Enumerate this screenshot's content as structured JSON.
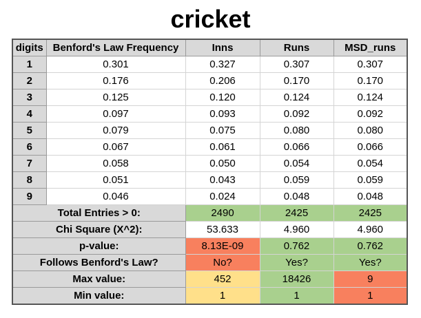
{
  "title": "cricket",
  "headers": [
    "digits",
    "Benford's Law Frequency",
    "Inns",
    "Runs",
    "MSD_runs"
  ],
  "rows": [
    {
      "digit": "1",
      "benford": "0.301",
      "inns": "0.327",
      "runs": "0.307",
      "msd": "0.307"
    },
    {
      "digit": "2",
      "benford": "0.176",
      "inns": "0.206",
      "runs": "0.170",
      "msd": "0.170"
    },
    {
      "digit": "3",
      "benford": "0.125",
      "inns": "0.120",
      "runs": "0.124",
      "msd": "0.124"
    },
    {
      "digit": "4",
      "benford": "0.097",
      "inns": "0.093",
      "runs": "0.092",
      "msd": "0.092"
    },
    {
      "digit": "5",
      "benford": "0.079",
      "inns": "0.075",
      "runs": "0.080",
      "msd": "0.080"
    },
    {
      "digit": "6",
      "benford": "0.067",
      "inns": "0.061",
      "runs": "0.066",
      "msd": "0.066"
    },
    {
      "digit": "7",
      "benford": "0.058",
      "inns": "0.050",
      "runs": "0.054",
      "msd": "0.054"
    },
    {
      "digit": "8",
      "benford": "0.051",
      "inns": "0.043",
      "runs": "0.059",
      "msd": "0.059"
    },
    {
      "digit": "9",
      "benford": "0.046",
      "inns": "0.024",
      "runs": "0.048",
      "msd": "0.048"
    }
  ],
  "stats": [
    {
      "label": "Total Entries > 0:",
      "cells": [
        {
          "value": "2490",
          "color": "#a9d08e"
        },
        {
          "value": "2425",
          "color": "#a9d08e"
        },
        {
          "value": "2425",
          "color": "#a9d08e"
        }
      ]
    },
    {
      "label": "Chi Square (X^2):",
      "cells": [
        {
          "value": "53.633",
          "color": "#ffffff"
        },
        {
          "value": "4.960",
          "color": "#ffffff"
        },
        {
          "value": "4.960",
          "color": "#ffffff"
        }
      ]
    },
    {
      "label": "p-value:",
      "cells": [
        {
          "value": "8.13E-09",
          "color": "#f8805e"
        },
        {
          "value": "0.762",
          "color": "#a9d08e"
        },
        {
          "value": "0.762",
          "color": "#a9d08e"
        }
      ]
    },
    {
      "label": "Follows Benford's Law?",
      "cells": [
        {
          "value": "No?",
          "color": "#f8805e"
        },
        {
          "value": "Yes?",
          "color": "#a9d08e"
        },
        {
          "value": "Yes?",
          "color": "#a9d08e"
        }
      ]
    },
    {
      "label": "Max value:",
      "cells": [
        {
          "value": "452",
          "color": "#ffe08a"
        },
        {
          "value": "18426",
          "color": "#a9d08e"
        },
        {
          "value": "9",
          "color": "#f8805e"
        }
      ]
    },
    {
      "label": "Min value:",
      "cells": [
        {
          "value": "1",
          "color": "#ffe08a"
        },
        {
          "value": "1",
          "color": "#a9d08e"
        },
        {
          "value": "1",
          "color": "#f8805e"
        }
      ]
    }
  ]
}
